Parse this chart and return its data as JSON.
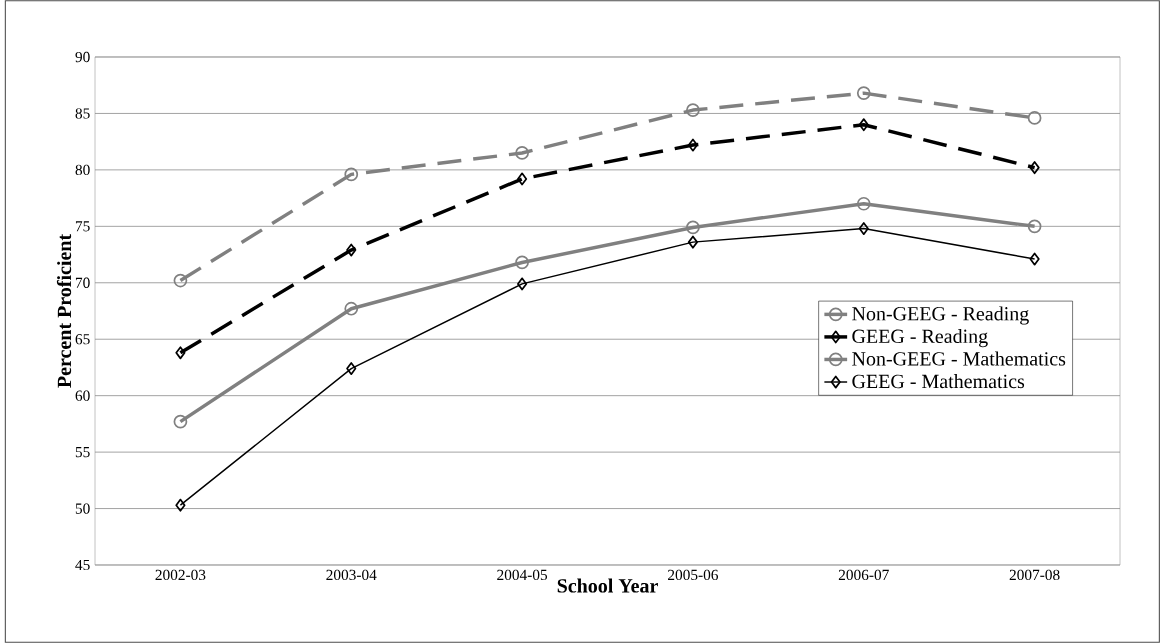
{
  "chart_data": {
    "type": "line",
    "xlabel": "School Year",
    "ylabel": "Percent Proficient",
    "categories": [
      "2002-03",
      "2003-04",
      "2004-05",
      "2005-06",
      "2006-07",
      "2007-08"
    ],
    "series": [
      {
        "name": "Non-GEEG - Reading",
        "color": "#808080",
        "line_style": "dashed",
        "marker": "circle",
        "values": [
          70.2,
          79.6,
          81.5,
          85.3,
          86.8,
          84.6
        ]
      },
      {
        "name": "GEEG - Reading",
        "color": "#000000",
        "line_style": "dashed",
        "marker": "diamond",
        "values": [
          63.8,
          72.9,
          79.2,
          82.2,
          84.0,
          80.2
        ]
      },
      {
        "name": "Non-GEEG - Mathematics",
        "color": "#808080",
        "line_style": "solid",
        "marker": "circle",
        "values": [
          57.7,
          67.7,
          71.8,
          74.9,
          77.0,
          75.0
        ]
      },
      {
        "name": "GEEG - Mathematics",
        "color": "#000000",
        "line_style": "solid",
        "marker": "diamond",
        "values": [
          50.3,
          62.4,
          69.9,
          73.6,
          74.8,
          72.1
        ]
      }
    ],
    "ylim": [
      45,
      90
    ],
    "yticks": [
      45,
      50,
      55,
      60,
      65,
      70,
      75,
      80,
      85,
      90
    ],
    "grid": "y",
    "legend": "right"
  }
}
